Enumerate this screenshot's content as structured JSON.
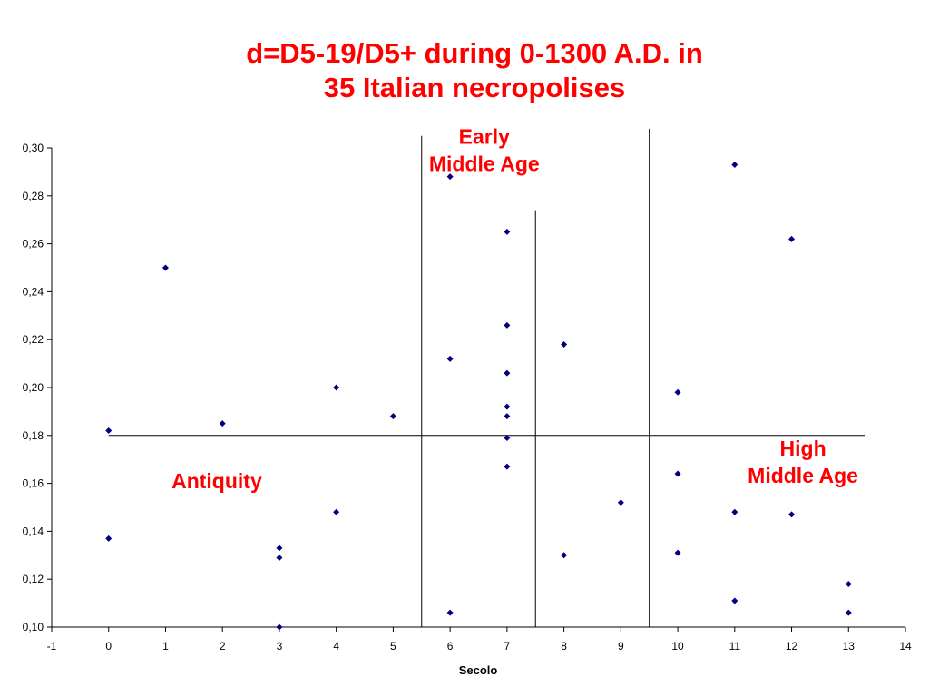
{
  "chart_data": {
    "type": "scatter",
    "title": [
      "d=D5-19/D5+ during 0-1300 A.D. in",
      "35 Italian necropolises"
    ],
    "xlabel": "Secolo",
    "ylabel": "",
    "xlim": [
      -1,
      14
    ],
    "ylim": [
      0.1,
      0.3
    ],
    "x_ticks": [
      "-1",
      "0",
      "1",
      "2",
      "3",
      "4",
      "5",
      "6",
      "7",
      "8",
      "9",
      "10",
      "11",
      "12",
      "13",
      "14"
    ],
    "y_ticks": [
      "0,10",
      "0,12",
      "0,14",
      "0,16",
      "0,18",
      "0,20",
      "0,22",
      "0,24",
      "0,26",
      "0,28",
      "0,30"
    ],
    "point_color": "#000080",
    "line_color": "#000000",
    "annotation_color": "#ff0000",
    "points": [
      {
        "x": 0,
        "y": 0.182
      },
      {
        "x": 0,
        "y": 0.137
      },
      {
        "x": 1,
        "y": 0.25
      },
      {
        "x": 2,
        "y": 0.185
      },
      {
        "x": 3,
        "y": 0.133
      },
      {
        "x": 3,
        "y": 0.129
      },
      {
        "x": 3,
        "y": 0.1
      },
      {
        "x": 4,
        "y": 0.2
      },
      {
        "x": 4,
        "y": 0.148
      },
      {
        "x": 5,
        "y": 0.188
      },
      {
        "x": 6,
        "y": 0.288
      },
      {
        "x": 6,
        "y": 0.212
      },
      {
        "x": 6,
        "y": 0.106
      },
      {
        "x": 7,
        "y": 0.265
      },
      {
        "x": 7,
        "y": 0.226
      },
      {
        "x": 7,
        "y": 0.206
      },
      {
        "x": 7,
        "y": 0.192
      },
      {
        "x": 7,
        "y": 0.188
      },
      {
        "x": 7,
        "y": 0.179
      },
      {
        "x": 7,
        "y": 0.167
      },
      {
        "x": 8,
        "y": 0.218
      },
      {
        "x": 8,
        "y": 0.13
      },
      {
        "x": 9,
        "y": 0.152
      },
      {
        "x": 10,
        "y": 0.198
      },
      {
        "x": 10,
        "y": 0.164
      },
      {
        "x": 10,
        "y": 0.131
      },
      {
        "x": 11,
        "y": 0.293
      },
      {
        "x": 11,
        "y": 0.148
      },
      {
        "x": 11,
        "y": 0.111
      },
      {
        "x": 12,
        "y": 0.262
      },
      {
        "x": 12,
        "y": 0.147
      },
      {
        "x": 13,
        "y": 0.118
      },
      {
        "x": 13,
        "y": 0.106
      }
    ],
    "reference_lines": [
      {
        "orientation": "horizontal",
        "y": 0.18,
        "x_from": 0,
        "x_to": 13.3
      },
      {
        "orientation": "vertical",
        "x": 5.5,
        "y_from": 0.1,
        "y_to": 0.305
      },
      {
        "orientation": "vertical",
        "x": 7.5,
        "y_from": 0.1,
        "y_to": 0.274
      },
      {
        "orientation": "vertical",
        "x": 9.5,
        "y_from": 0.1,
        "y_to": 0.308
      }
    ],
    "annotations": [
      {
        "lines": [
          "Antiquity"
        ],
        "x": 1.9,
        "y": 0.161
      },
      {
        "lines": [
          "Early",
          "Middle Age"
        ],
        "x": 6.6,
        "y": 0.299
      },
      {
        "lines": [
          "High",
          "Middle Age"
        ],
        "x": 12.2,
        "y": 0.169
      }
    ]
  }
}
